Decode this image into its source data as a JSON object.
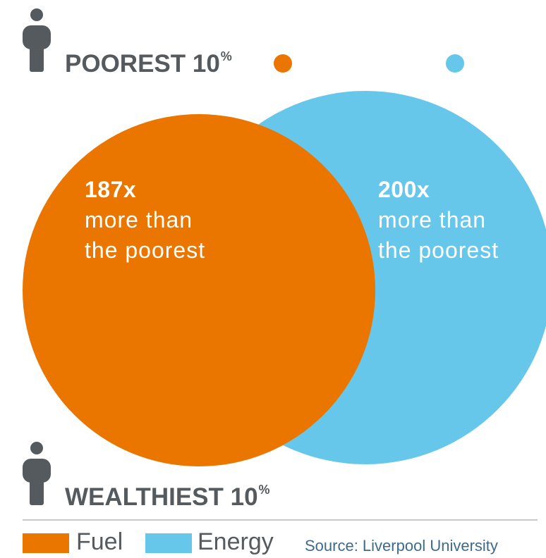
{
  "colors": {
    "fuel": "#ea7600",
    "energy": "#67c7eb",
    "text": "#555a5e",
    "source": "#3f6b8a"
  },
  "poorest": {
    "label": "POOREST 10",
    "sup": "%"
  },
  "wealthiest": {
    "label": "WEALTHIEST 10",
    "sup": "%"
  },
  "chart_data": {
    "type": "venn",
    "title": "",
    "series": [
      {
        "name": "Fuel",
        "value": 187,
        "multiplier_label": "187x",
        "description_line1": "more than",
        "description_line2": "the poorest"
      },
      {
        "name": "Energy",
        "value": 200,
        "multiplier_label": "200x",
        "description_line1": "more than",
        "description_line2": "the poorest"
      }
    ],
    "legend": [
      "Fuel",
      "Energy"
    ],
    "legend_placement": "bottom-left"
  },
  "legend": {
    "fuel": "Fuel",
    "energy": "Energy"
  },
  "source": "Source: Liverpool University",
  "icons": [
    "person-icon"
  ]
}
